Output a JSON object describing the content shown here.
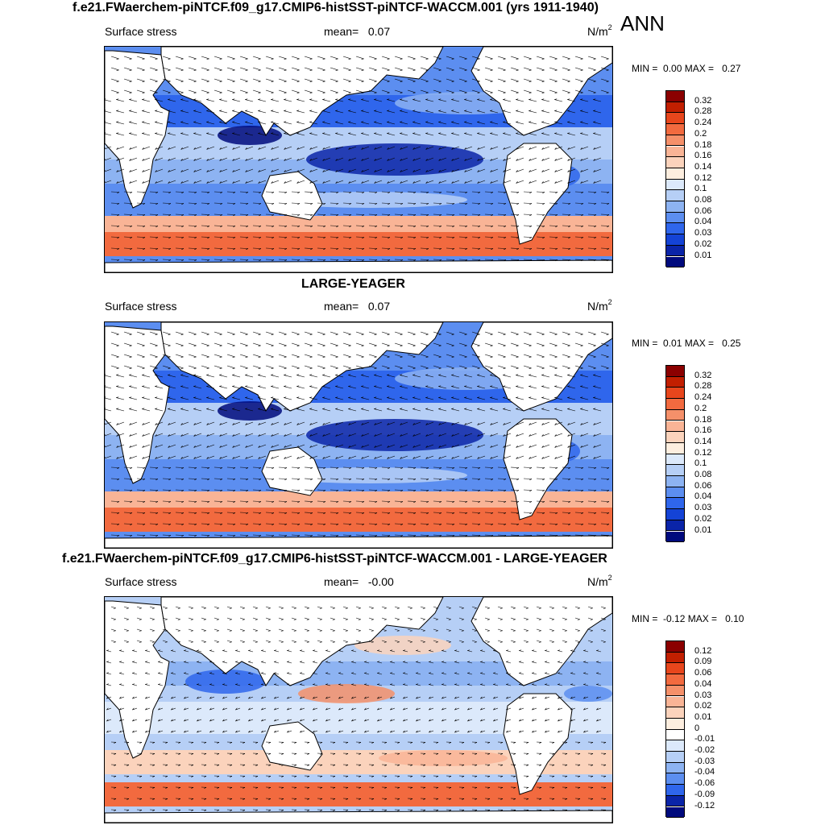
{
  "season": "ANN",
  "panels": [
    {
      "title": "f.e21.FWaerchem-piNTCF.f09_g17.CMIP6-histSST-piNTCF-WACCM.001 (yrs 1911-1940)",
      "variable": "Surface stress",
      "mean_label": "mean=",
      "mean_value": "0.07",
      "units": "N/m",
      "units_exp": "2",
      "min_label": "MIN =",
      "min_value": "0.00",
      "max_label": "MAX =",
      "max_value": "0.27",
      "colorbar": {
        "labels": [
          "0.32",
          "0.28",
          "0.24",
          "0.2",
          "0.18",
          "0.16",
          "0.14",
          "0.12",
          "0.1",
          "0.08",
          "0.06",
          "0.04",
          "0.03",
          "0.02",
          "0.01"
        ],
        "colors": [
          "#8b0000",
          "#c21f00",
          "#e8461c",
          "#f26a3f",
          "#f5906a",
          "#f9b496",
          "#fbd3bc",
          "#fdeedf",
          "#dce9fb",
          "#b6cff6",
          "#8db3f2",
          "#5c8ef0",
          "#2f66ec",
          "#1443d6",
          "#0a24a8",
          "#000a7d"
        ]
      }
    },
    {
      "title": "LARGE-YEAGER",
      "variable": "Surface stress",
      "mean_label": "mean=",
      "mean_value": "0.07",
      "units": "N/m",
      "units_exp": "2",
      "min_label": "MIN =",
      "min_value": "0.01",
      "max_label": "MAX =",
      "max_value": "0.25",
      "colorbar": {
        "labels": [
          "0.32",
          "0.28",
          "0.24",
          "0.2",
          "0.18",
          "0.16",
          "0.14",
          "0.12",
          "0.1",
          "0.08",
          "0.06",
          "0.04",
          "0.03",
          "0.02",
          "0.01"
        ],
        "colors": [
          "#8b0000",
          "#c21f00",
          "#e8461c",
          "#f26a3f",
          "#f5906a",
          "#f9b496",
          "#fbd3bc",
          "#fdeedf",
          "#dce9fb",
          "#b6cff6",
          "#8db3f2",
          "#5c8ef0",
          "#2f66ec",
          "#1443d6",
          "#0a24a8",
          "#000a7d"
        ]
      }
    },
    {
      "title": "f.e21.FWaerchem-piNTCF.f09_g17.CMIP6-histSST-piNTCF-WACCM.001 - LARGE-YEAGER",
      "variable": "Surface stress",
      "mean_label": "mean=",
      "mean_value": "-0.00",
      "units": "N/m",
      "units_exp": "2",
      "min_label": "MIN =",
      "min_value": "-0.12",
      "max_label": "MAX =",
      "max_value": "0.10",
      "colorbar": {
        "labels": [
          "0.12",
          "0.09",
          "0.06",
          "0.04",
          "0.03",
          "0.02",
          "0.01",
          "0",
          "-0.01",
          "-0.02",
          "-0.03",
          "-0.04",
          "-0.06",
          "-0.09",
          "-0.12"
        ],
        "colors": [
          "#8b0000",
          "#c21f00",
          "#e8461c",
          "#f26a3f",
          "#f5906a",
          "#f9b496",
          "#fbd3bc",
          "#fdeedf",
          "#ffffff",
          "#dce9fb",
          "#b6cff6",
          "#8db3f2",
          "#5c8ef0",
          "#2f66ec",
          "#0a24a8",
          "#000a7d"
        ]
      }
    }
  ]
}
